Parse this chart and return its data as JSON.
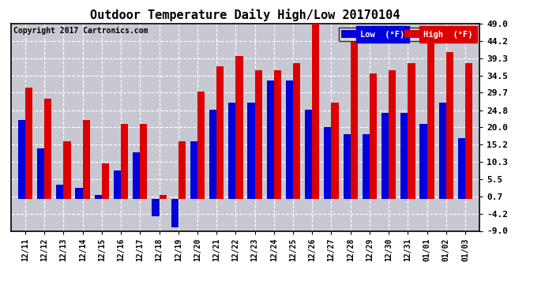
{
  "title": "Outdoor Temperature Daily High/Low 20170104",
  "copyright": "Copyright 2017 Cartronics.com",
  "categories": [
    "12/11",
    "12/12",
    "12/13",
    "12/14",
    "12/15",
    "12/16",
    "12/17",
    "12/18",
    "12/19",
    "12/20",
    "12/21",
    "12/22",
    "12/23",
    "12/24",
    "12/25",
    "12/26",
    "12/27",
    "12/28",
    "12/29",
    "12/30",
    "12/31",
    "01/01",
    "01/02",
    "01/03"
  ],
  "low": [
    22,
    14,
    4,
    3,
    1,
    8,
    13,
    -5,
    -8,
    16,
    25,
    27,
    27,
    33,
    33,
    25,
    20,
    18,
    18,
    24,
    24,
    21,
    27,
    17
  ],
  "high": [
    31,
    28,
    16,
    22,
    10,
    21,
    21,
    1,
    16,
    30,
    37,
    40,
    36,
    36,
    38,
    49,
    27,
    44,
    35,
    36,
    38,
    44,
    41,
    38
  ],
  "ylim": [
    -9.0,
    49.0
  ],
  "yticks": [
    -9.0,
    -4.2,
    0.7,
    5.5,
    10.3,
    15.2,
    20.0,
    24.8,
    29.7,
    34.5,
    39.3,
    44.2,
    49.0
  ],
  "low_color": "#0000dd",
  "high_color": "#dd0000",
  "plot_bg_color": "#c8c8d2",
  "fig_bg_color": "#ffffff",
  "grid_color": "#ffffff",
  "title_fontsize": 11,
  "bar_width": 0.38,
  "legend_low_label": "Low  (°F)",
  "legend_high_label": "High  (°F)"
}
